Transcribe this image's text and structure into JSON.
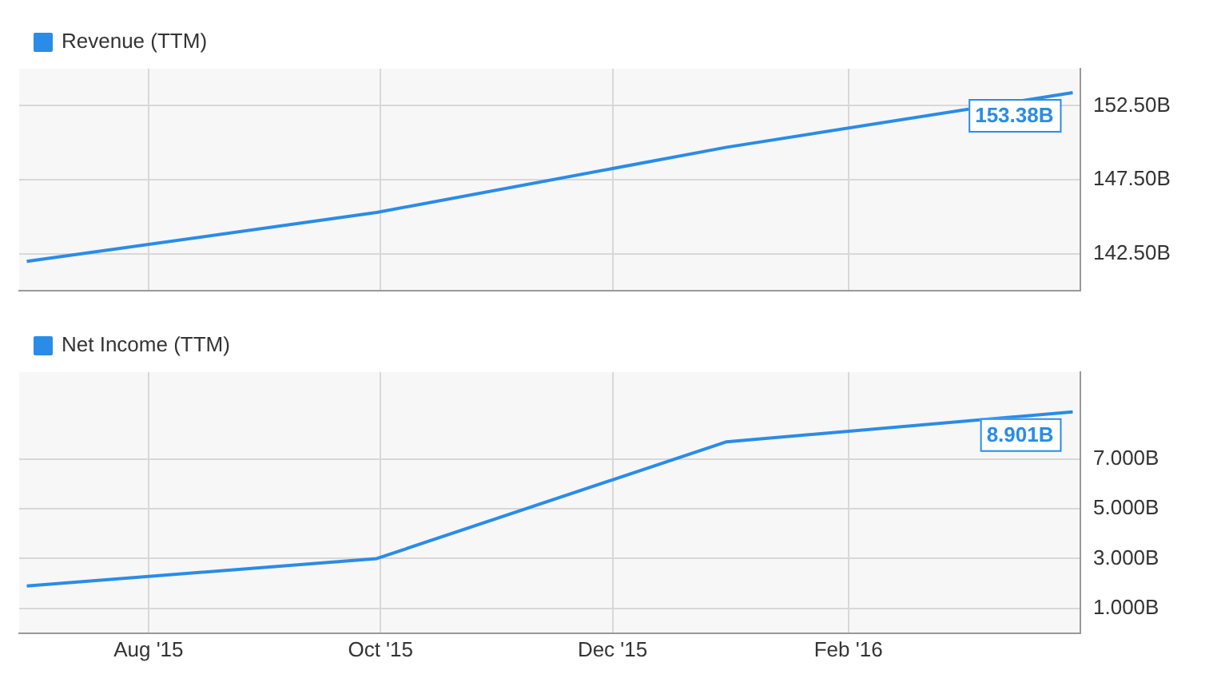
{
  "chart_data": [
    {
      "type": "line",
      "legend": "top left",
      "grid": true,
      "tick_labels": "y",
      "x": [
        "2015-06-30",
        "2015-09-30",
        "2015-12-31",
        "2016-03-31"
      ],
      "xlim": [
        "2015-06-28",
        "2016-04-02"
      ],
      "xticks": [
        {
          "value": "2015-08-01",
          "label": null
        },
        {
          "value": "2015-10-01",
          "label": null
        },
        {
          "value": "2015-12-01",
          "label": null
        },
        {
          "value": "2016-02-01",
          "label": null
        }
      ],
      "ylim": [
        140,
        155
      ],
      "yticks": [
        {
          "value": 142.5,
          "label": "142.50B"
        },
        {
          "value": 147.5,
          "label": "147.50B"
        },
        {
          "value": 152.5,
          "label": "152.50B"
        }
      ],
      "series": [
        {
          "name": "Revenue (TTM)",
          "color": "#2a8ce6",
          "values": [
            142.0,
            145.3,
            149.7,
            153.38
          ],
          "value_labels": [
            null,
            null,
            null,
            "153.38B"
          ]
        }
      ]
    },
    {
      "type": "line",
      "legend": "top left",
      "grid": true,
      "x": [
        "2015-06-30",
        "2015-09-30",
        "2015-12-31",
        "2016-03-31"
      ],
      "xlim": [
        "2015-06-28",
        "2016-04-02"
      ],
      "xticks": [
        {
          "value": "2015-08-01",
          "label": "Aug '15"
        },
        {
          "value": "2015-10-01",
          "label": "Oct '15"
        },
        {
          "value": "2015-12-01",
          "label": "Dec '15"
        },
        {
          "value": "2016-02-01",
          "label": "Feb '16"
        }
      ],
      "ylim": [
        0,
        10.5
      ],
      "yticks": [
        {
          "value": 1,
          "label": "1.000B"
        },
        {
          "value": 3,
          "label": "3.000B"
        },
        {
          "value": 5,
          "label": "5.000B"
        },
        {
          "value": 7,
          "label": "7.000B"
        }
      ],
      "series": [
        {
          "name": "Net Income (TTM)",
          "color": "#2a8ce6",
          "values": [
            1.9,
            3.0,
            7.7,
            8.901
          ],
          "value_labels": [
            null,
            null,
            null,
            "8.901B"
          ]
        }
      ]
    }
  ]
}
